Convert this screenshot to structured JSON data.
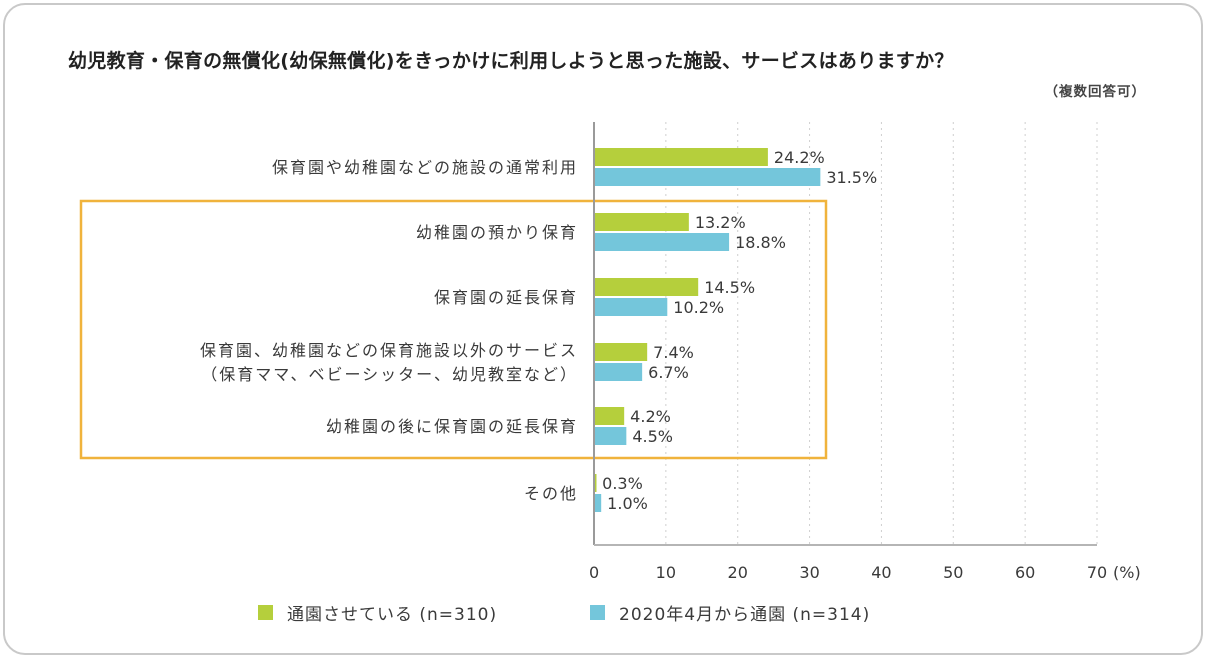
{
  "chart_data": {
    "type": "bar",
    "orientation": "horizontal",
    "title": "幼児教育・保育の無償化(幼保無償化)をきっかけに利用しようと思った施設、サービスはありますか？",
    "subtitle": "（複数回答可）",
    "categories": [
      [
        "保育園や幼稚園などの施設の通常利用"
      ],
      [
        "幼稚園の預かり保育"
      ],
      [
        "保育園の延長保育"
      ],
      [
        "保育園、幼稚園などの保育施設以外のサービス",
        "（保育ママ、ベビーシッター、幼児教室など）"
      ],
      [
        "幼稚園の後に保育園の延長保育"
      ],
      [
        "その他"
      ]
    ],
    "series": [
      {
        "name": "通園させている (n=310)",
        "color": "#b5cf3c",
        "values": [
          24.2,
          13.2,
          14.5,
          7.4,
          4.2,
          0.3
        ]
      },
      {
        "name": "2020年4月から通園 (n=314)",
        "color": "#74c6db",
        "values": [
          31.5,
          18.8,
          10.2,
          6.7,
          4.5,
          1.0
        ]
      }
    ],
    "value_suffix": "%",
    "xlabel": "(%)",
    "ylabel": "",
    "xlim": [
      0,
      70
    ],
    "xticks": [
      0,
      10,
      20,
      30,
      40,
      50,
      60,
      70
    ],
    "grid": "vertical dotted",
    "legend_position": "bottom",
    "highlight": {
      "categories_from": 1,
      "categories_to": 4,
      "color": "#f0b33c"
    }
  }
}
